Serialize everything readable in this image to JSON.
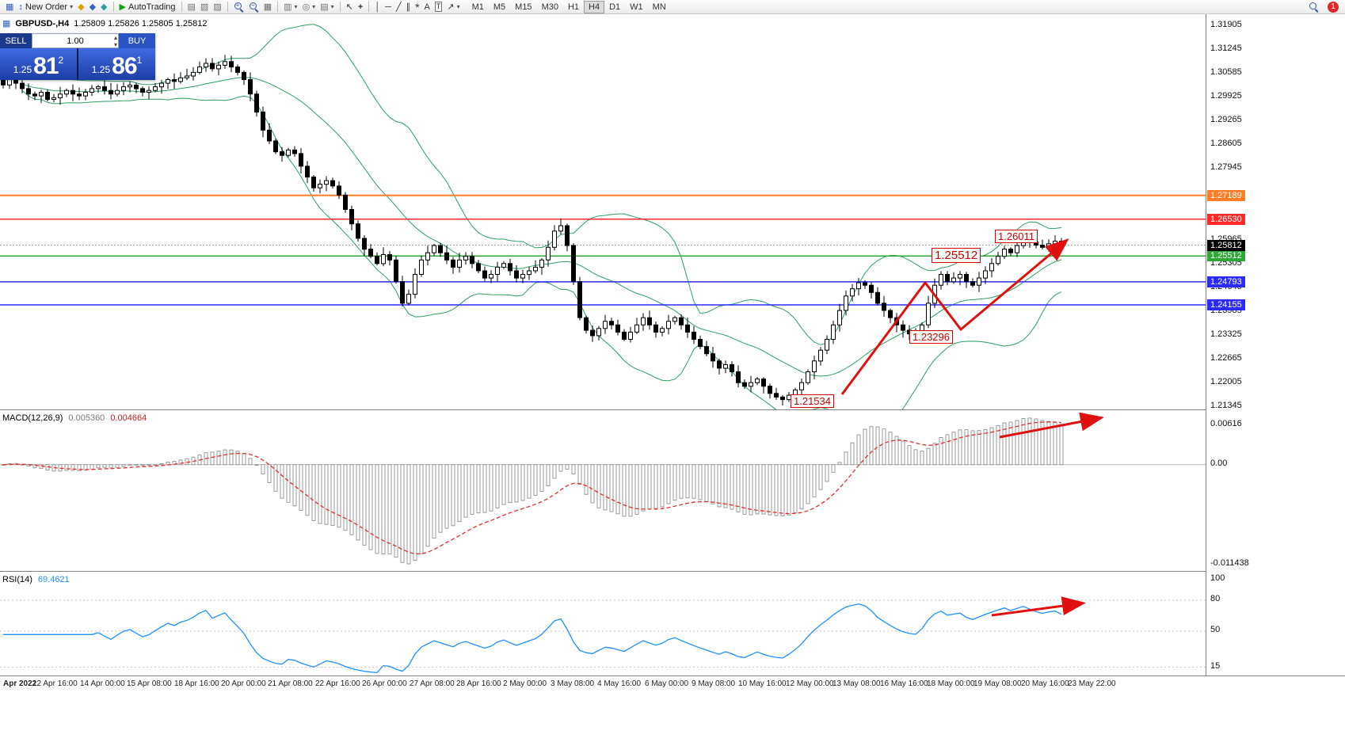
{
  "toolbar": {
    "new_order": "New Order",
    "autotrading": "AutoTrading",
    "timeframes": [
      "M1",
      "M5",
      "M15",
      "M30",
      "H1",
      "H4",
      "D1",
      "W1",
      "MN"
    ],
    "active_timeframe": "H4",
    "notification_count": "1"
  },
  "icons": {
    "chart_window": "▦",
    "new_order": "↕",
    "metaeditor": "◆",
    "market": "◆",
    "services": "◆",
    "autotrading_play": "▶",
    "indicators": "▤",
    "add_indicator": "▧",
    "objects_list": "▨",
    "tile_windows": "▦",
    "new_chart": "▥",
    "profiles": "◎",
    "templates": "▤",
    "caret": "▾",
    "cursor": "↖",
    "crosshair": "+",
    "vline": "│",
    "hline": "─",
    "trendline": "╱",
    "channel": "∥",
    "fibonacci": "*",
    "text": "A",
    "textbox": "T",
    "arrows": "↗",
    "spin_up": "▴",
    "spin_down": "▾"
  },
  "trade_panel": {
    "sell_label": "SELL",
    "buy_label": "BUY",
    "volume": "1.00",
    "sell_price": {
      "prefix": "1.25",
      "big": "81",
      "sup": "2"
    },
    "buy_price": {
      "prefix": "1.25",
      "big": "86",
      "sup": "1"
    }
  },
  "chart_data": {
    "type": "candlestick",
    "symbol": "GBPUSD-,H4",
    "ohlc_line": "1.25809 1.25826 1.25805 1.25812",
    "timeframe": "H4",
    "price_axis": {
      "view_min": 1.21257,
      "view_max": 1.32212,
      "labels": [
        "1.31905",
        "1.31245",
        "1.30585",
        "1.29925",
        "1.29265",
        "1.28605",
        "1.27945",
        "1.25965",
        "1.25305",
        "1.24645",
        "1.23985",
        "1.23325",
        "1.22665",
        "1.22005",
        "1.21345"
      ]
    },
    "current_price": {
      "value": "1.25812",
      "color": "#000000"
    },
    "levels": [
      {
        "value": "1.27189",
        "color": "#ff7d26",
        "width": 2
      },
      {
        "value": "1.26530",
        "color": "#ff2a2a",
        "width": 1.5
      },
      {
        "value": "1.25512",
        "color": "#2ea838",
        "width": 1.5
      },
      {
        "value": "1.24793",
        "color": "#2b2bff",
        "width": 1.5
      },
      {
        "value": "1.24155",
        "color": "#2b2bff",
        "width": 1.5
      }
    ],
    "bollinger_color": "#2f9e63",
    "trend_color": "#e01010",
    "closes": [
      1.3025,
      1.304,
      1.303,
      1.3015,
      1.3,
      1.2995,
      1.3005,
      1.2985,
      1.299,
      1.3,
      1.301,
      1.3,
      1.2995,
      1.3005,
      1.3015,
      1.302,
      1.301,
      1.3,
      1.301,
      1.302,
      1.3025,
      1.3015,
      1.3005,
      1.301,
      1.302,
      1.303,
      1.304,
      1.3035,
      1.3045,
      1.305,
      1.306,
      1.3075,
      1.3085,
      1.307,
      1.308,
      1.309,
      1.3075,
      1.306,
      1.304,
      1.3,
      1.295,
      1.29,
      1.287,
      1.284,
      1.283,
      1.2845,
      1.2835,
      1.28,
      1.277,
      1.274,
      1.275,
      1.276,
      1.2745,
      1.272,
      1.268,
      1.264,
      1.26,
      1.257,
      1.255,
      1.253,
      1.2555,
      1.254,
      1.248,
      1.242,
      1.2445,
      1.25,
      1.254,
      1.256,
      1.258,
      1.256,
      1.254,
      1.252,
      1.254,
      1.255,
      1.253,
      1.251,
      1.249,
      1.25,
      1.252,
      1.253,
      1.251,
      1.249,
      1.25,
      1.251,
      1.252,
      1.254,
      1.2575,
      1.262,
      1.2635,
      1.258,
      1.248,
      1.238,
      1.2345,
      1.233,
      1.235,
      1.237,
      1.236,
      1.234,
      1.232,
      1.234,
      1.236,
      1.238,
      1.236,
      1.234,
      1.235,
      1.237,
      1.238,
      1.236,
      1.234,
      1.232,
      1.23,
      1.228,
      1.226,
      1.224,
      1.225,
      1.223,
      1.22,
      1.219,
      1.22,
      1.221,
      1.219,
      1.217,
      1.216,
      1.2153,
      1.2165,
      1.218,
      1.22,
      1.223,
      1.226,
      1.229,
      1.232,
      1.236,
      1.24,
      1.244,
      1.246,
      1.2477,
      1.247,
      1.245,
      1.242,
      1.24,
      1.238,
      1.236,
      1.2345,
      1.2335,
      1.233,
      1.236,
      1.242,
      1.247,
      1.25,
      1.248,
      1.249,
      1.25,
      1.248,
      1.247,
      1.249,
      1.251,
      1.253,
      1.255,
      1.257,
      1.256,
      1.258,
      1.26,
      1.259,
      1.2581,
      1.2575,
      1.2585,
      1.2592,
      1.25812
    ],
    "annotations": [
      "1.26011",
      "1.25512",
      "1.23296",
      "1.21534"
    ],
    "time_labels": [
      "Apr 2022",
      "12 Apr 16:00",
      "14 Apr 00:00",
      "15 Apr 08:00",
      "18 Apr 16:00",
      "20 Apr 00:00",
      "21 Apr 08:00",
      "22 Apr 16:00",
      "26 Apr 00:00",
      "27 Apr 08:00",
      "28 Apr 16:00",
      "2 May 00:00",
      "3 May 08:00",
      "4 May 16:00",
      "6 May 00:00",
      "9 May 08:00",
      "10 May 16:00",
      "12 May 00:00",
      "13 May 08:00",
      "16 May 16:00",
      "18 May 00:00",
      "19 May 08:00",
      "20 May 16:00",
      "23 May 22:00"
    ],
    "indicators": {
      "macd": {
        "label": "MACD(12,26,9)",
        "value_main": "0.005360",
        "value_signal": "0.004664",
        "scale": [
          "0.00616",
          "0.00",
          "-0.011438"
        ],
        "signal_color": "#e03030"
      },
      "rsi": {
        "label": "RSI(14)",
        "value": "69.4621",
        "scale": [
          "100",
          "80",
          "50",
          "15"
        ],
        "color": "#1e90ff"
      }
    }
  }
}
